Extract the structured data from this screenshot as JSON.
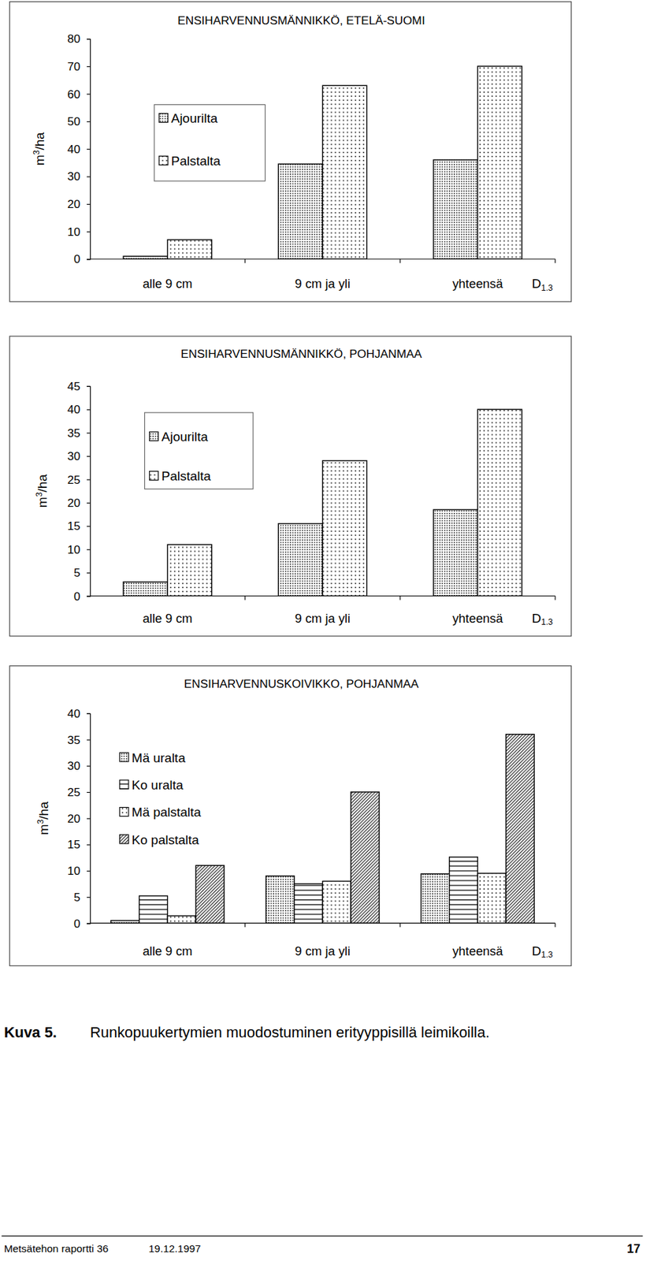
{
  "chart_data": [
    {
      "type": "bar",
      "title": "ENSIHARVENNUSMÄNNIKKÖ, ETELÄ-SUOMI",
      "ylabel": "m3/ha",
      "xlabel": "D1.3",
      "categories": [
        "alle 9 cm",
        "9 cm ja yli",
        "yhteensä"
      ],
      "series": [
        {
          "name": "Ajourilta",
          "values": [
            1,
            34.5,
            36
          ]
        },
        {
          "name": "Palstalta",
          "values": [
            7,
            63,
            70
          ]
        }
      ],
      "ylim": [
        0,
        80
      ],
      "yticks": [
        0,
        10,
        20,
        30,
        40,
        50,
        60,
        70,
        80
      ]
    },
    {
      "type": "bar",
      "title": "ENSIHARVENNUSMÄNNIKKÖ, POHJANMAA",
      "ylabel": "m3/ha",
      "xlabel": "D1.3",
      "categories": [
        "alle 9 cm",
        "9 cm ja yli",
        "yhteensä"
      ],
      "series": [
        {
          "name": "Ajourilta",
          "values": [
            3,
            15.5,
            18.5
          ]
        },
        {
          "name": "Palstalta",
          "values": [
            11,
            29,
            40
          ]
        }
      ],
      "ylim": [
        0,
        45
      ],
      "yticks": [
        0,
        5,
        10,
        15,
        20,
        25,
        30,
        35,
        40,
        45
      ]
    },
    {
      "type": "bar",
      "title": "ENSIHARVENNUSKOIVIKKO, POHJANMAA",
      "ylabel": "m3/ha",
      "xlabel": "D1.3",
      "categories": [
        "alle 9 cm",
        "9 cm ja yli",
        "yhteensä"
      ],
      "series": [
        {
          "name": "Mä uralta",
          "values": [
            0.5,
            9,
            9.4
          ]
        },
        {
          "name": "Ko uralta",
          "values": [
            5.2,
            7.5,
            12.6
          ]
        },
        {
          "name": "Mä palstalta",
          "values": [
            1.4,
            8,
            9.5
          ]
        },
        {
          "name": "Ko palstalta",
          "values": [
            11,
            25,
            36
          ]
        }
      ],
      "ylim": [
        0,
        40
      ],
      "yticks": [
        0,
        5,
        10,
        15,
        20,
        25,
        30,
        35,
        40
      ]
    }
  ],
  "page": {
    "caption_label": "Kuva 5.",
    "caption": "Runkopuukertymien muodostuminen erityyppisillä leimikoilla.",
    "footer": {
      "left": "Metsätehon raportti 36",
      "date": "19.12.1997",
      "page": "17"
    }
  }
}
